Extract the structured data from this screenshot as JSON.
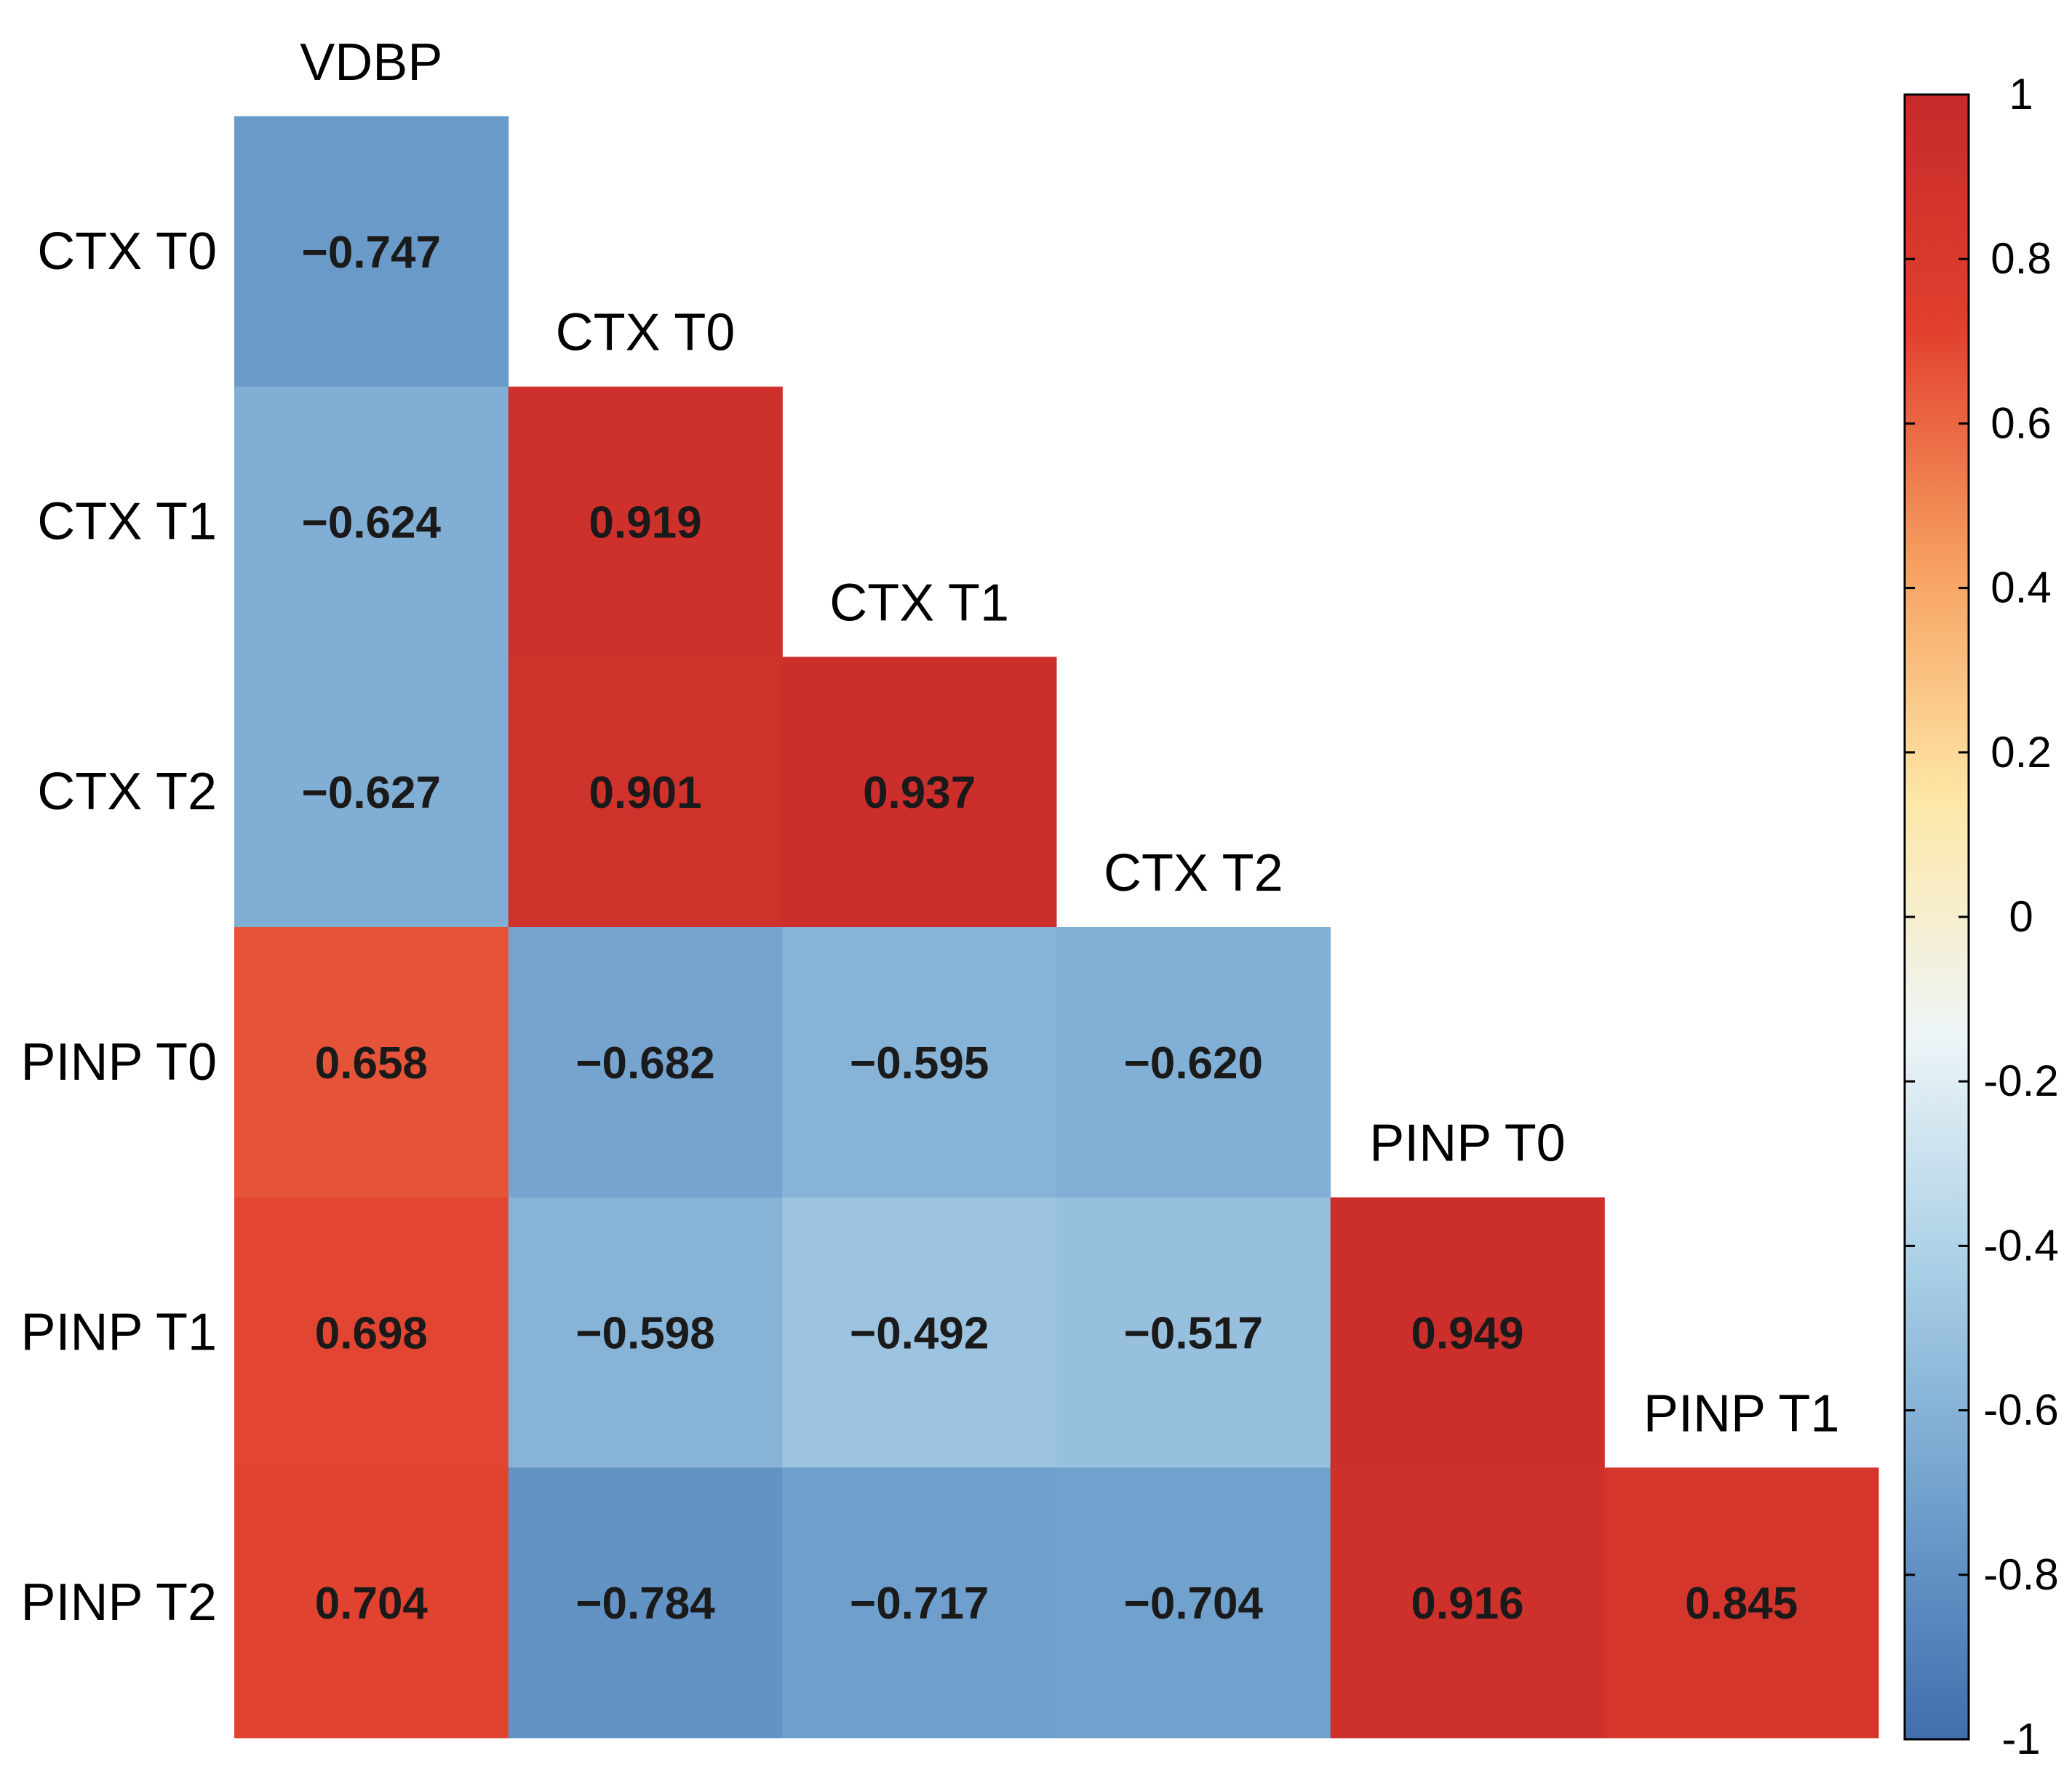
{
  "chart_data": {
    "type": "heatmap",
    "title": "",
    "xlabel": "",
    "ylabel": "",
    "row_labels": [
      "CTX T0",
      "CTX T1",
      "CTX T2",
      "PINP T0",
      "PINP T1",
      "PINP T2"
    ],
    "col_labels": [
      "VDBP",
      "CTX T0",
      "CTX T1",
      "CTX T2",
      "PINP T0",
      "PINP T1"
    ],
    "values": [
      [
        "−0.747",
        null,
        null,
        null,
        null,
        null
      ],
      [
        "−0.624",
        "0.919",
        null,
        null,
        null,
        null
      ],
      [
        "−0.627",
        "0.901",
        "0.937",
        null,
        null,
        null
      ],
      [
        "0.658",
        "−0.682",
        "−0.595",
        "−0.620",
        null,
        null
      ],
      [
        "0.698",
        "−0.598",
        "−0.492",
        "−0.517",
        "0.949",
        null
      ],
      [
        "0.704",
        "−0.784",
        "−0.717",
        "−0.704",
        "0.916",
        "0.845"
      ]
    ],
    "numeric_values": [
      [
        -0.747,
        null,
        null,
        null,
        null,
        null
      ],
      [
        -0.624,
        0.919,
        null,
        null,
        null,
        null
      ],
      [
        -0.627,
        0.901,
        0.937,
        null,
        null,
        null
      ],
      [
        0.658,
        -0.682,
        -0.595,
        -0.62,
        null,
        null
      ],
      [
        0.698,
        -0.598,
        -0.492,
        -0.517,
        0.949,
        null
      ],
      [
        0.704,
        -0.784,
        -0.717,
        -0.704,
        0.916,
        0.845
      ]
    ],
    "layout": "lower-triangle",
    "colorbar": {
      "range": [
        -1,
        1
      ],
      "ticks": [
        "1",
        "0.8",
        "0.6",
        "0.4",
        "0.2",
        "0",
        "-0.2",
        "-0.4",
        "-0.6",
        "-0.8",
        "-1"
      ],
      "tick_values": [
        1,
        0.8,
        0.6,
        0.4,
        0.2,
        0,
        -0.2,
        -0.4,
        -0.6,
        -0.8,
        -1
      ],
      "colors": [
        "#3f6fad",
        "#6f9fcc",
        "#a9cfe6",
        "#eef5f7",
        "#fde7a6",
        "#f7a060",
        "#e1402e",
        "#c62a2a"
      ]
    }
  }
}
